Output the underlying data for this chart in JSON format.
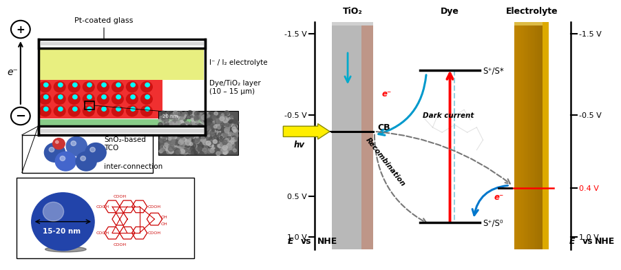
{
  "left_panel": {
    "label_pt_glass": "Pt-coated glass",
    "label_electrolyte": "I⁻ / I₂ electrolyte",
    "label_dye_tio2": "Dye/TiO₂ layer\n(10 – 15 μm)",
    "label_sno2": "SnO₂-based\nTCO",
    "label_interconn": "inter-connection",
    "label_size": "15-20 nm",
    "label_20nm": "20 nm"
  },
  "right_panel": {
    "left_axis_label": "E vs NHE",
    "right_axis_label": "E vs NHE",
    "tio2_label": "TiO₂",
    "dye_label": "Dye",
    "electrolyte_label": "Electrolyte",
    "cb_label": "CB",
    "s_plus_s_star": "S⁺/S*",
    "s_plus_s0": "S⁺/S⁰",
    "dark_current": "Dark current",
    "recombination": "Recombination",
    "hv_label": "hv",
    "e_minus1": "e⁻",
    "e_minus2": "e⁻",
    "voltage_04": "0.4 V",
    "ticks_left": [
      [
        -1.5,
        "-1.5 V"
      ],
      [
        -0.5,
        "-0.5 V"
      ],
      [
        0.5,
        "0.5 V"
      ],
      [
        1.0,
        "1.0 V"
      ]
    ],
    "ticks_right": [
      [
        -1.5,
        "-1.5 V"
      ],
      [
        -0.5,
        "-0.5 V"
      ],
      [
        0.4,
        "0.4 V"
      ],
      [
        1.0,
        "1.0 V"
      ]
    ],
    "cb_level": -0.3,
    "s_star_level": -1.05,
    "s0_level": 0.82,
    "electrolyte_level": 0.4,
    "y_min": -1.65,
    "y_max": 1.15
  },
  "bg_color": "#ffffff"
}
